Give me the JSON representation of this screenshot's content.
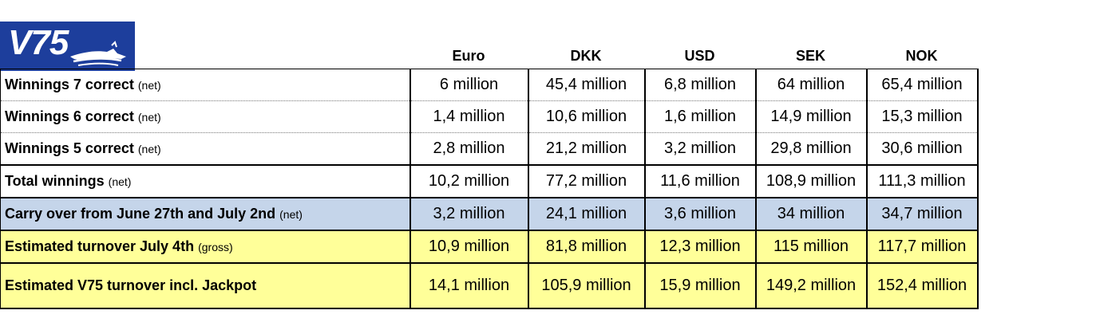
{
  "logo": {
    "text": "V75",
    "color": "#1d3e9c"
  },
  "columns": [
    "Euro",
    "DKK",
    "USD",
    "SEK",
    "NOK"
  ],
  "rows": [
    {
      "label": "Winnings 7 correct",
      "note": "(net)",
      "values": [
        "6 million",
        "45,4 million",
        "6,8 million",
        "64 million",
        "65,4 million"
      ]
    },
    {
      "label": "Winnings 6 correct",
      "note": "(net)",
      "values": [
        "1,4 million",
        "10,6 million",
        "1,6 million",
        "14,9 million",
        "15,3 million"
      ]
    },
    {
      "label": "Winnings 5 correct",
      "note": "(net)",
      "values": [
        "2,8 million",
        "21,2 million",
        "3,2 million",
        "29,8 million",
        "30,6 million"
      ]
    },
    {
      "label": "Total winnings",
      "note": "(net)",
      "values": [
        "10,2 million",
        "77,2 million",
        "11,6 million",
        "108,9 million",
        "111,3 million"
      ]
    },
    {
      "label": "Carry over from June 27th and July 2nd",
      "note": "(net)",
      "values": [
        "3,2 million",
        "24,1 million",
        "3,6 million",
        "34 million",
        "34,7 million"
      ]
    },
    {
      "label": "Estimated turnover July 4th",
      "note": "(gross)",
      "values": [
        "10,9 million",
        "81,8 million",
        "12,3 million",
        "115 million",
        "117,7 million"
      ]
    },
    {
      "label": "Estimated V75 turnover incl. Jackpot",
      "note": "",
      "values": [
        "14,1 million",
        "105,9 million",
        "15,9 million",
        "149,2 million",
        "152,4 million"
      ]
    }
  ],
  "colors": {
    "carry_over_row": "#c5d5ea",
    "turnover_rows": "#ffff99"
  }
}
